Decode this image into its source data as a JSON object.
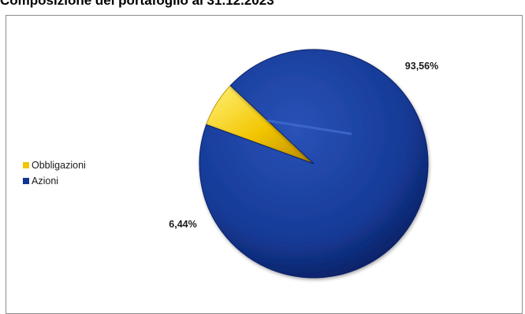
{
  "chart_data": {
    "type": "pie",
    "title": "Composizione del portafoglio al 31.12.2023",
    "categories": [
      "Obbligazioni",
      "Azioni"
    ],
    "values": [
      6.44,
      93.56
    ],
    "data_labels": [
      "6,44%",
      "93,56%"
    ],
    "colors": [
      "#f2c500",
      "#123592"
    ],
    "legend_position": "left",
    "legend": [
      {
        "label": "Obbligazioni",
        "color": "#f2c500"
      },
      {
        "label": "Azioni",
        "color": "#123592"
      }
    ]
  }
}
